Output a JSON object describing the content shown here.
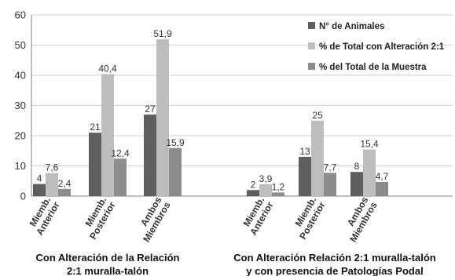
{
  "chart_data": {
    "type": "bar",
    "ylim": [
      0,
      60
    ],
    "yticks": [
      "0",
      "10",
      "20",
      "30",
      "40",
      "50",
      "60"
    ],
    "grid": true,
    "legend_position": "top-right",
    "groups": [
      {
        "title_lines": [
          "Con Alteración de la Relación",
          "2:1 muralla-talón"
        ],
        "categories": [
          {
            "label_lines": [
              "Miemb.",
              "Anterior"
            ]
          },
          {
            "label_lines": [
              "Miemb.",
              "Posterior"
            ]
          },
          {
            "label_lines": [
              "Ambos",
              "Miembros"
            ]
          }
        ]
      },
      {
        "title_lines": [
          "Con Alteración Relación 2:1 muralla-talón",
          "y con presencia de Patologías Podal"
        ],
        "categories": [
          {
            "label_lines": [
              "Miemb.",
              "Anterior"
            ]
          },
          {
            "label_lines": [
              "Miemb.",
              "Posterior"
            ]
          },
          {
            "label_lines": [
              "Ambos",
              "Miembros"
            ]
          }
        ]
      }
    ],
    "series": [
      {
        "name": "N° de Animales",
        "color": "#5f5f5f",
        "values": [
          4,
          21,
          27,
          2,
          13,
          8
        ],
        "labels": [
          "4",
          "21",
          "27",
          "2",
          "13",
          "8"
        ]
      },
      {
        "name": "% de Total con Alteración 2:1",
        "color": "#bdbdbd",
        "values": [
          7.6,
          40.4,
          51.9,
          3.9,
          25,
          15.4
        ],
        "labels": [
          "7,6",
          "40,4",
          "51,9",
          "3,9",
          "25",
          "15,4"
        ]
      },
      {
        "name": "% del Total de la Muestra",
        "color": "#8c8c8c",
        "values": [
          2.4,
          12.4,
          15.9,
          1.2,
          7.7,
          4.7
        ],
        "labels": [
          "2,4",
          "12,4",
          "15,9",
          "1,2",
          "7,7",
          "4,7"
        ]
      }
    ]
  }
}
